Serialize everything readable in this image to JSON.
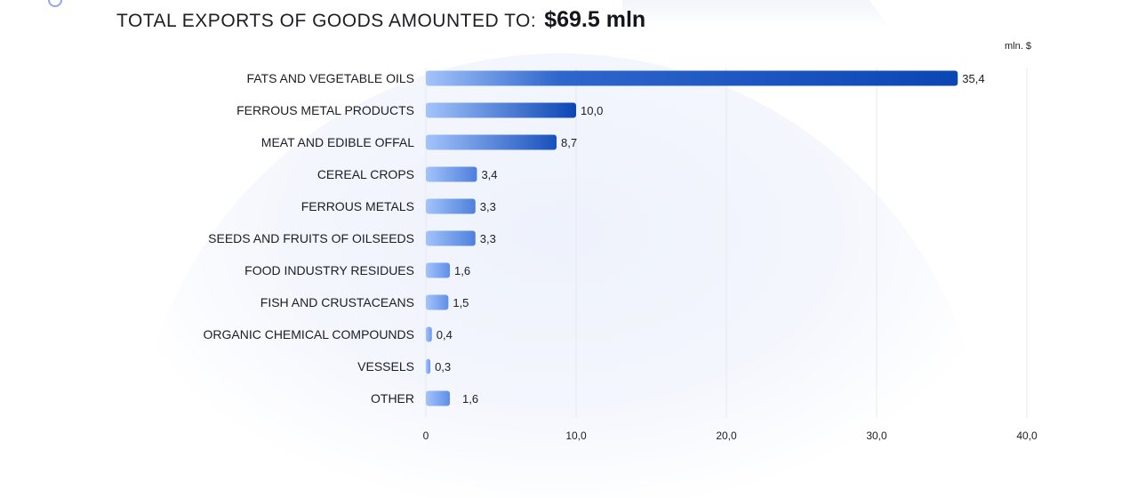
{
  "header": {
    "title_prefix": "TOTAL EXPORTS OF GOODS AMOUNTED TO:",
    "title_value": "$69.5 mln"
  },
  "chart_data": {
    "type": "bar",
    "orientation": "horizontal",
    "unit_label": "mln. $",
    "categories": [
      "FATS AND VEGETABLE OILS",
      "FERROUS METAL PRODUCTS",
      "MEAT AND EDIBLE OFFAL",
      "CEREAL CROPS",
      "FERROUS METALS",
      "SEEDS AND FRUITS OF OILSEEDS",
      "FOOD INDUSTRY RESIDUES",
      "FISH AND CRUSTACEANS",
      "ORGANIC CHEMICAL COMPOUNDS",
      "VESSELS",
      "OTHER"
    ],
    "values": [
      35.4,
      10.0,
      8.7,
      3.4,
      3.3,
      3.3,
      1.6,
      1.5,
      0.4,
      0.3,
      1.6
    ],
    "value_labels": [
      "35,4",
      "10,0",
      "8,7",
      "3,4",
      "3,3",
      "3,3",
      "1,6",
      "1,5",
      "0,4",
      "0,3",
      "1,6"
    ],
    "xlim": [
      0,
      40
    ],
    "xticks": [
      0,
      10,
      20,
      30,
      40
    ],
    "xtick_labels": [
      "0",
      "10,0",
      "20,0",
      "30,0",
      "40,0"
    ],
    "grid": true,
    "colors": {
      "bar_light": "#a3c3fb",
      "bar_mid": "#6f9cf0",
      "bar_dark": "#0b46b4",
      "grid": "#e6e9f2",
      "text": "#1c1c24"
    }
  }
}
